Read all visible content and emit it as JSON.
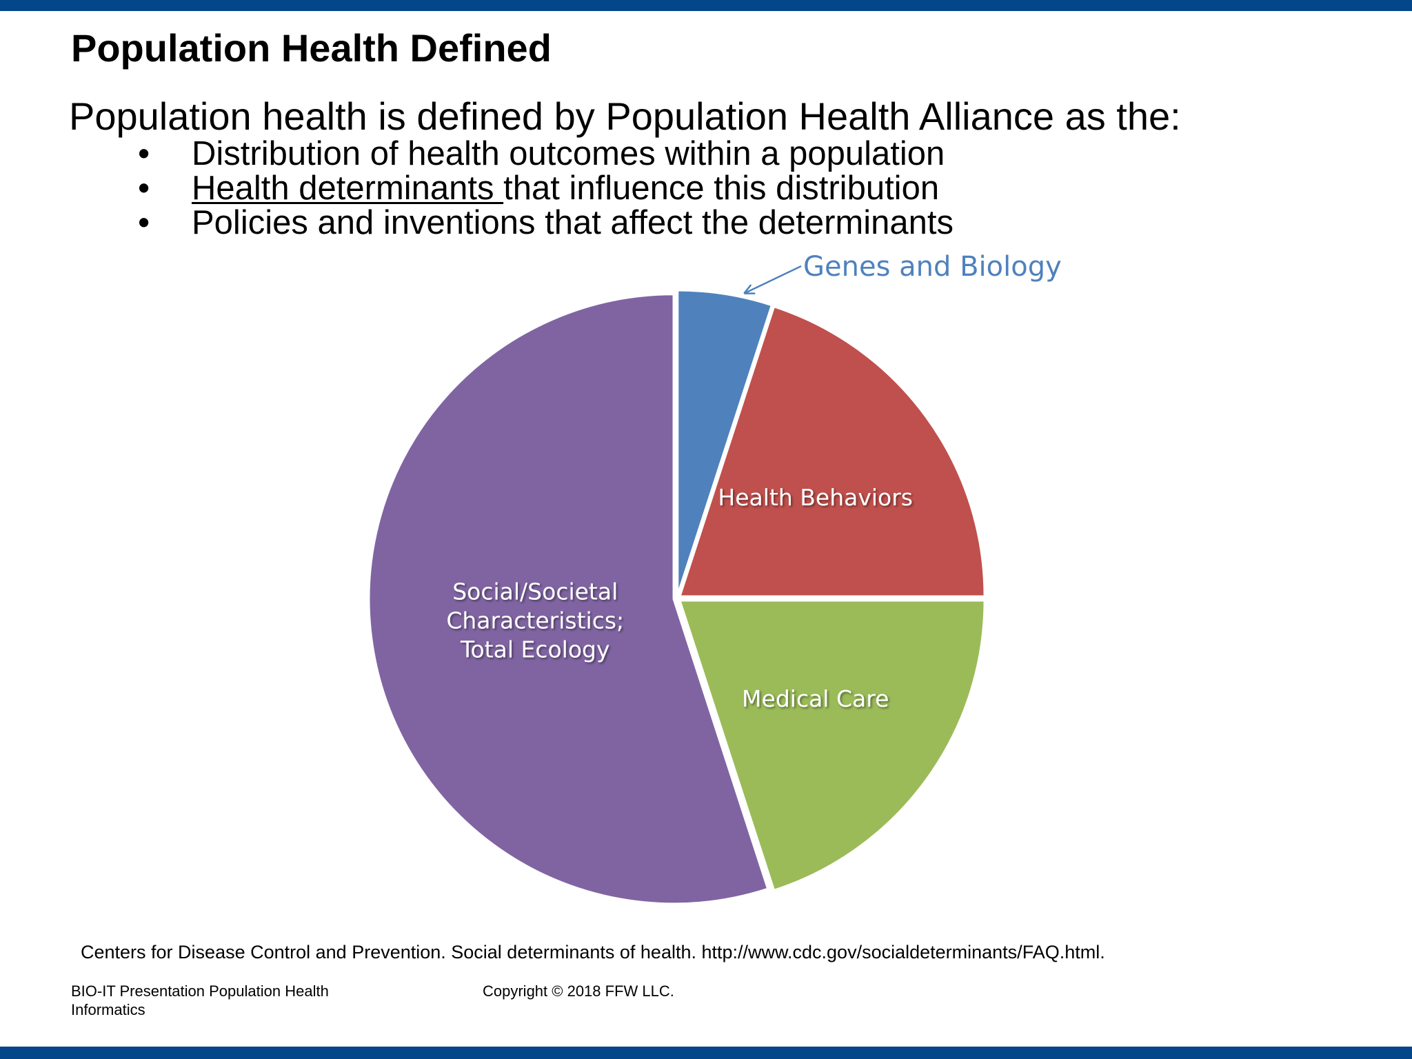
{
  "slide": {
    "title": "Population Health Defined",
    "intro": "Population health is defined by Population Health Alliance as the:",
    "bullets": [
      {
        "marker": "•",
        "underlined": "",
        "text": "Distribution of health outcomes within a population"
      },
      {
        "marker": "•",
        "underlined": "Health determinants ",
        "text": "that influence this distribution"
      },
      {
        "marker": "•",
        "underlined": "",
        "text": "Policies and inventions that affect the determinants"
      }
    ],
    "source": "Centers for Disease Control and Prevention. Social determinants of health. http://www.cdc.gov/socialdeterminants/FAQ.html.",
    "footer_left": "BIO-IT Presentation Population Health Informatics",
    "footer_center": "Copyright © 2018 FFW LLC.",
    "colors": {
      "bar": "#04468a"
    }
  },
  "chart_data": {
    "type": "pie",
    "title": "",
    "slices": [
      {
        "label": "Genes and Biology",
        "value": 5,
        "color": "#4f81bd",
        "label_position": "outside"
      },
      {
        "label": "Health Behaviors",
        "value": 20,
        "color": "#c0504d",
        "label_position": "inside"
      },
      {
        "label": "Medical Care",
        "value": 20,
        "color": "#9bbb59",
        "label_position": "inside"
      },
      {
        "label": "Social/Societal Characteristics; Total Ecology",
        "label_lines": [
          "Social/Societal",
          "Characteristics;",
          "Total Ecology"
        ],
        "value": 55,
        "color": "#8064a2",
        "label_position": "inside"
      }
    ],
    "start": "12 o'clock, clockwise",
    "legend": "none"
  }
}
